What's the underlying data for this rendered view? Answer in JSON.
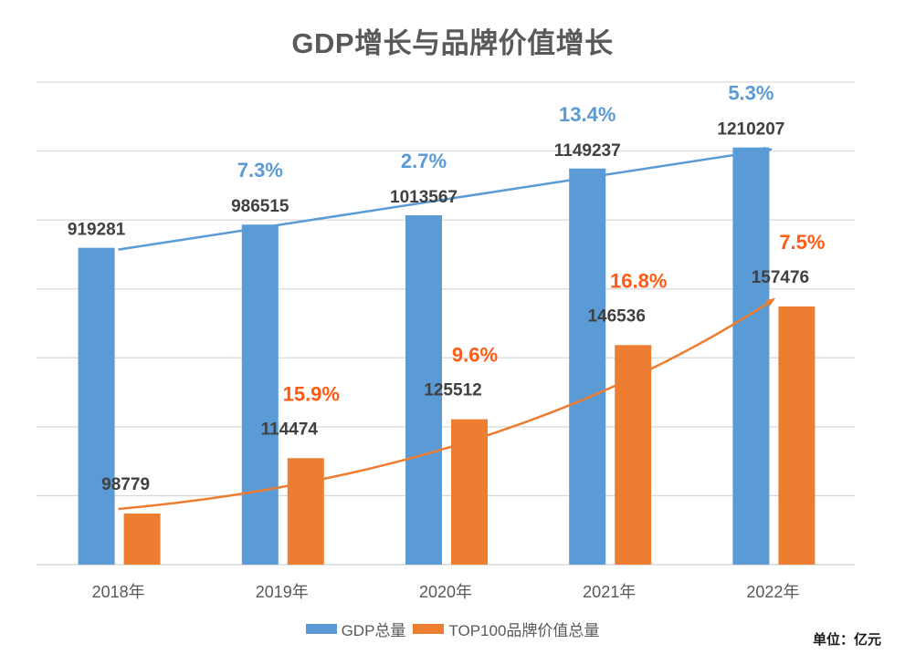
{
  "chart_data": {
    "type": "bar",
    "title": "GDP增长与品牌价值增长",
    "categories": [
      "2018年",
      "2019年",
      "2020年",
      "2021年",
      "2022年"
    ],
    "series": [
      {
        "name": "GDP总量",
        "color": "#5B9BD5",
        "values": [
          919281,
          986515,
          1013567,
          1149237,
          1210207
        ],
        "growth_labels": [
          "",
          "7.3%",
          "2.7%",
          "13.4%",
          "5.3%"
        ],
        "growth_color": "#5B9BD5"
      },
      {
        "name": "TOP100品牌价值总量",
        "color": "#ED7D31",
        "values": [
          98779,
          114474,
          125512,
          146536,
          157476
        ],
        "growth_labels": [
          "",
          "15.9%",
          "9.6%",
          "16.8%",
          "7.5%"
        ],
        "growth_color": "#FF5B14"
      }
    ],
    "trend_lines": [
      {
        "series": "GDP总量",
        "shape": "straight arrow",
        "color": "#5B9BD5"
      },
      {
        "series": "TOP100品牌价值总量",
        "shape": "curved arrow",
        "color": "#ED7D31"
      }
    ],
    "xlabel": "",
    "ylabel": "",
    "ylim": [
      0,
      1400000
    ],
    "y_gridlines": 7,
    "y_tick_labels_visible": false,
    "grid": true,
    "legend": "bottom-center",
    "unit_note": "单位：亿元"
  }
}
